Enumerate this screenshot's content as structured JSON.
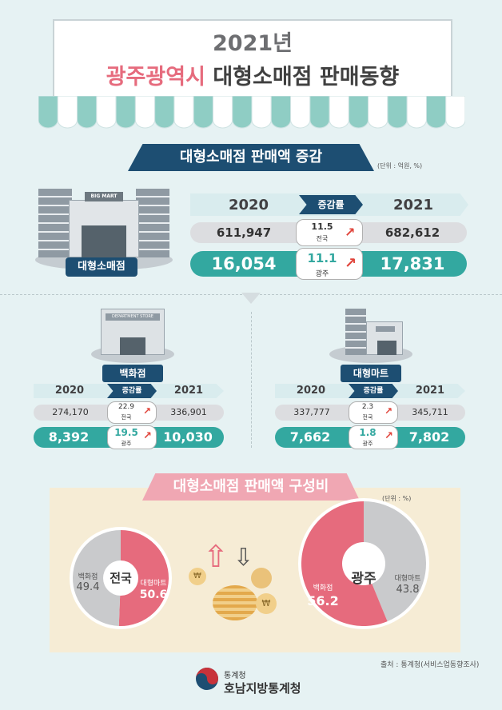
{
  "title": {
    "year": "2021년",
    "highlight": "광주광역시",
    "rest": "대형소매점 판매동향"
  },
  "section1": {
    "heading": "대형소매점 판매액 증감",
    "unit": "(단위 : 억원, %)",
    "store_label": "대형소매점",
    "sign_text": "BIG MART",
    "year_2020": "2020",
    "rate_label": "증감률",
    "year_2021": "2021",
    "national": {
      "v2020": "611,947",
      "rate": "11.5",
      "region": "전국",
      "v2021": "682,612"
    },
    "gwangju": {
      "v2020": "16,054",
      "rate": "11.1",
      "region": "광주",
      "v2021": "17,831"
    }
  },
  "dept": {
    "label": "백화점",
    "sign_text": "DEPARTMENT STORE",
    "year_2020": "2020",
    "rate_label": "증감률",
    "year_2021": "2021",
    "national": {
      "v2020": "274,170",
      "rate": "22.9",
      "region": "전국",
      "v2021": "336,901"
    },
    "gwangju": {
      "v2020": "8,392",
      "rate": "19.5",
      "region": "광주",
      "v2021": "10,030"
    }
  },
  "mart": {
    "label": "대형마트",
    "year_2020": "2020",
    "rate_label": "증감률",
    "year_2021": "2021",
    "national": {
      "v2020": "337,777",
      "rate": "2.3",
      "region": "전국",
      "v2021": "345,711"
    },
    "gwangju": {
      "v2020": "7,662",
      "rate": "1.8",
      "region": "광주",
      "v2021": "7,802"
    }
  },
  "section3": {
    "heading": "대형소매점 판매액 구성비",
    "unit": "(단위 : %)",
    "national": {
      "center": "전국",
      "dept_label": "백화점",
      "dept_value": "49.4",
      "mart_label": "대형마트",
      "mart_value": "50.6"
    },
    "gwangju": {
      "center": "광주",
      "dept_label": "백화점",
      "dept_value": "56.2",
      "mart_label": "대형마트",
      "mart_value": "43.8"
    }
  },
  "source": "출처 : 통계청(서비스업동향조사)",
  "footer": {
    "org": "통계청",
    "name": "호남지방통계청"
  },
  "colors": {
    "navy": "#1d4e72",
    "green": "#33a8a0",
    "pink": "#e66b7d",
    "gray": "#c9cacc",
    "beige": "#f6ecd5"
  },
  "chart_data": [
    {
      "type": "pie",
      "categories": [
        "백화점",
        "대형마트"
      ],
      "values": [
        49.4,
        50.6
      ]
    },
    {
      "type": "pie",
      "categories": [
        "백화점",
        "대형마트"
      ],
      "values": [
        56.2,
        43.8
      ]
    }
  ]
}
